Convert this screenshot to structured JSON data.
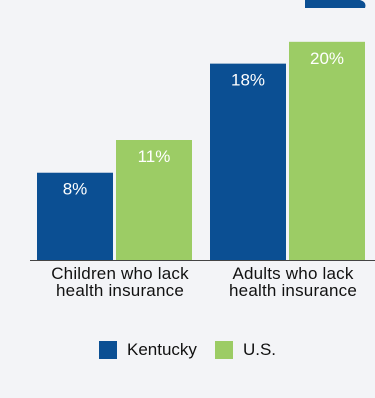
{
  "chart_data": {
    "type": "bar",
    "categories": [
      "Children who lack health insurance",
      "Adults who lack health insurance"
    ],
    "category_lines": [
      [
        "Children who lack",
        "health insurance"
      ],
      [
        "Adults who lack",
        "health insurance"
      ]
    ],
    "series": [
      {
        "name": "Kentucky",
        "color": "#0b4f93",
        "values": [
          8,
          18
        ],
        "labels": [
          "8%",
          "18%"
        ]
      },
      {
        "name": "U.S.",
        "color": "#9ccc65",
        "values": [
          11,
          20
        ],
        "labels": [
          "11%",
          "20%"
        ]
      }
    ],
    "ylim": [
      0,
      22
    ],
    "grid": false,
    "legend_position": "bottom-center",
    "title": "",
    "xlabel": "",
    "ylabel": ""
  },
  "colors": {
    "background": "#f3f4f7",
    "axis": "#444444",
    "label_on_blue": "#ffffff",
    "label_on_green": "#ffffff",
    "top_mark": "#0b4f93"
  }
}
